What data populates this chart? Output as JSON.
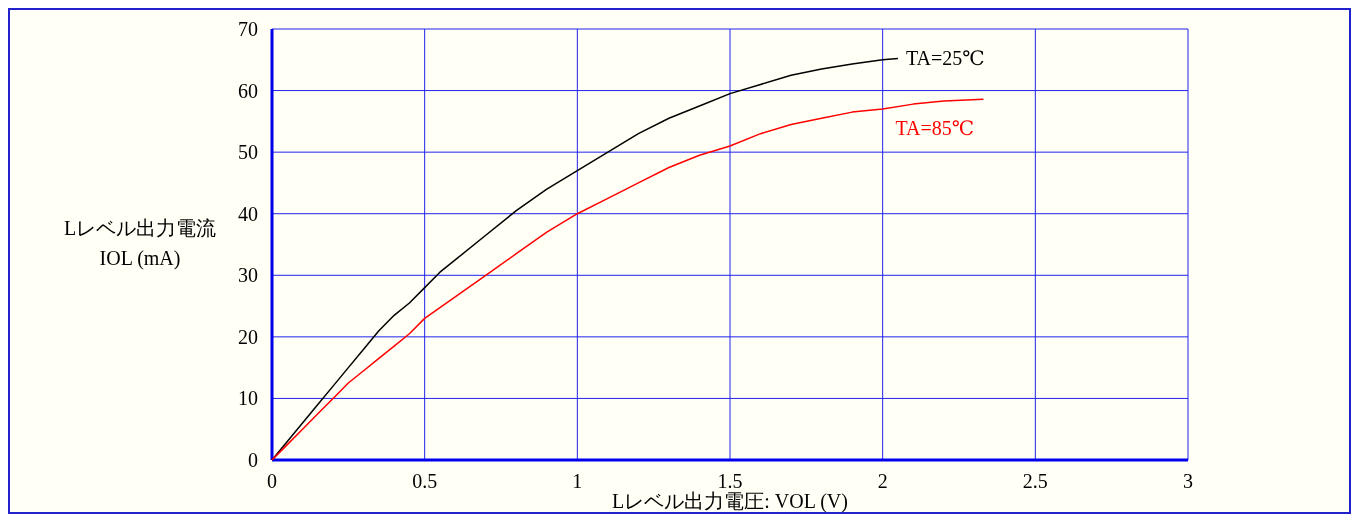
{
  "chart_data": {
    "type": "line",
    "xlabel": "Lレベル出力電圧: VOL (V)",
    "ylabel": "Lレベル出力電流\nIOL (mA)",
    "xlim": [
      0,
      3
    ],
    "xticks": [
      0,
      0.5,
      1,
      1.5,
      2,
      2.5,
      3
    ],
    "ylim": [
      0,
      70
    ],
    "yticks": [
      0,
      10,
      20,
      30,
      40,
      50,
      60,
      70
    ],
    "grid": true,
    "series": [
      {
        "name": "TA=25℃",
        "color": "#000000",
        "x": [
          0,
          0.05,
          0.1,
          0.15,
          0.2,
          0.25,
          0.3,
          0.35,
          0.4,
          0.45,
          0.5,
          0.55,
          0.6,
          0.7,
          0.8,
          0.9,
          1.0,
          1.1,
          1.2,
          1.3,
          1.4,
          1.5,
          1.6,
          1.7,
          1.8,
          1.9,
          2.0,
          2.05
        ],
        "values": [
          0,
          3,
          6,
          9,
          12,
          15,
          18,
          21,
          23.5,
          25.5,
          28,
          30.5,
          32.5,
          36.5,
          40.5,
          44,
          47,
          50,
          53,
          55.5,
          57.5,
          59.5,
          61,
          62.5,
          63.5,
          64.3,
          65,
          65.2
        ]
      },
      {
        "name": "TA=85℃",
        "color": "#ff0000",
        "x": [
          0,
          0.05,
          0.1,
          0.15,
          0.2,
          0.25,
          0.3,
          0.35,
          0.4,
          0.45,
          0.5,
          0.6,
          0.7,
          0.8,
          0.9,
          1.0,
          1.1,
          1.2,
          1.3,
          1.4,
          1.5,
          1.6,
          1.7,
          1.8,
          1.9,
          2.0,
          2.1,
          2.2,
          2.33
        ],
        "values": [
          0,
          2.5,
          5,
          7.5,
          10,
          12.5,
          14.5,
          16.5,
          18.5,
          20.5,
          23,
          26.5,
          30,
          33.5,
          37,
          40,
          42.5,
          45,
          47.5,
          49.5,
          51,
          53,
          54.5,
          55.5,
          56.5,
          57,
          57.8,
          58.3,
          58.6
        ]
      }
    ]
  }
}
